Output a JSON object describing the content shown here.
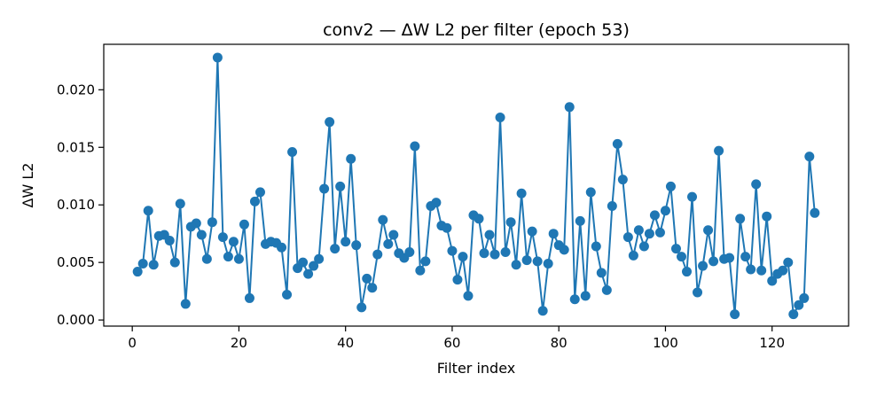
{
  "chart_data": {
    "type": "line",
    "title": "conv2 — ΔW L2 per filter (epoch 53)",
    "xlabel": "Filter index",
    "ylabel": "ΔW L2",
    "xlim": [
      -5.35,
      134.35
    ],
    "ylim": [
      -0.00053,
      0.02395
    ],
    "xticks": [
      0,
      20,
      40,
      60,
      80,
      100,
      120
    ],
    "xtick_labels": [
      "0",
      "20",
      "40",
      "60",
      "80",
      "100",
      "120"
    ],
    "yticks": [
      0.0,
      0.005,
      0.01,
      0.015,
      0.02
    ],
    "ytick_labels": [
      "0.000",
      "0.005",
      "0.010",
      "0.015",
      "0.020"
    ],
    "grid": false,
    "legend": "none",
    "marker": "circle",
    "color": "#1f77b4",
    "x": [
      1,
      2,
      3,
      4,
      5,
      6,
      7,
      8,
      9,
      10,
      11,
      12,
      13,
      14,
      15,
      16,
      17,
      18,
      19,
      20,
      21,
      22,
      23,
      24,
      25,
      26,
      27,
      28,
      29,
      30,
      31,
      32,
      33,
      34,
      35,
      36,
      37,
      38,
      39,
      40,
      41,
      42,
      43,
      44,
      45,
      46,
      47,
      48,
      49,
      50,
      51,
      52,
      53,
      54,
      55,
      56,
      57,
      58,
      59,
      60,
      61,
      62,
      63,
      64,
      65,
      66,
      67,
      68,
      69,
      70,
      71,
      72,
      73,
      74,
      75,
      76,
      77,
      78,
      79,
      80,
      81,
      82,
      83,
      84,
      85,
      86,
      87,
      88,
      89,
      90,
      91,
      92,
      93,
      94,
      95,
      96,
      97,
      98,
      99,
      100,
      101,
      102,
      103,
      104,
      105,
      106,
      107,
      108,
      109,
      110,
      111,
      112,
      113,
      114,
      115,
      116,
      117,
      118,
      119,
      120,
      121,
      122,
      123,
      124,
      125,
      126,
      127,
      128
    ],
    "y": [
      0.0042,
      0.0049,
      0.0095,
      0.0048,
      0.0073,
      0.0074,
      0.0069,
      0.005,
      0.0101,
      0.0014,
      0.0081,
      0.0084,
      0.0074,
      0.0053,
      0.0085,
      0.0228,
      0.0072,
      0.0055,
      0.0068,
      0.0053,
      0.0083,
      0.0019,
      0.0103,
      0.0111,
      0.0066,
      0.0068,
      0.0067,
      0.0063,
      0.0022,
      0.0146,
      0.0045,
      0.005,
      0.004,
      0.0047,
      0.0053,
      0.0114,
      0.0172,
      0.0062,
      0.0116,
      0.0068,
      0.014,
      0.0065,
      0.0011,
      0.0036,
      0.0028,
      0.0057,
      0.0087,
      0.0066,
      0.0074,
      0.0058,
      0.0054,
      0.0059,
      0.0151,
      0.0043,
      0.0051,
      0.0099,
      0.0102,
      0.0082,
      0.008,
      0.006,
      0.0035,
      0.0055,
      0.0021,
      0.0091,
      0.0088,
      0.0058,
      0.0074,
      0.0057,
      0.0176,
      0.0059,
      0.0085,
      0.0048,
      0.011,
      0.0052,
      0.0077,
      0.0051,
      0.0008,
      0.0049,
      0.0075,
      0.0065,
      0.0061,
      0.0185,
      0.0018,
      0.0086,
      0.0021,
      0.0111,
      0.0064,
      0.0041,
      0.0026,
      0.0099,
      0.0153,
      0.0122,
      0.0072,
      0.0056,
      0.0078,
      0.0064,
      0.0075,
      0.0091,
      0.0076,
      0.0095,
      0.0116,
      0.0062,
      0.0055,
      0.0042,
      0.0107,
      0.0024,
      0.0047,
      0.0078,
      0.0051,
      0.0147,
      0.0053,
      0.0054,
      0.0005,
      0.0088,
      0.0055,
      0.0044,
      0.0118,
      0.0043,
      0.009,
      0.0034,
      0.004,
      0.0043,
      0.005,
      0.0005,
      0.0013,
      0.0019,
      0.0142,
      0.0093
    ]
  }
}
